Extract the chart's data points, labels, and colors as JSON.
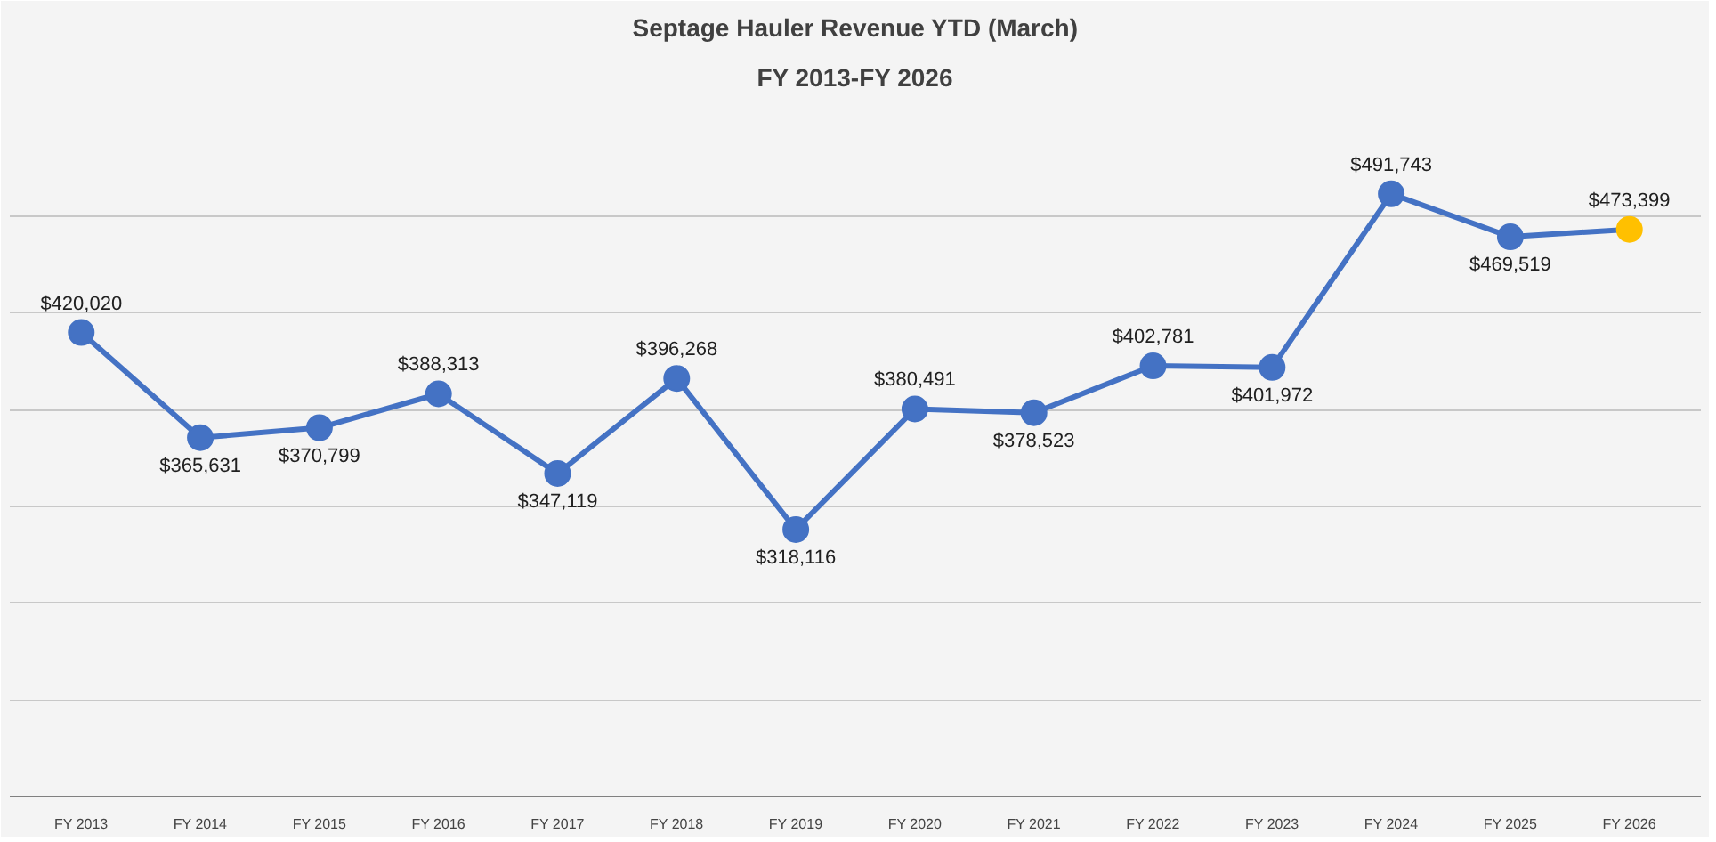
{
  "chart_data": {
    "type": "line",
    "title": "Septage Hauler Revenue YTD (March)",
    "subtitle": "FY 2013-FY 2026",
    "categories": [
      "FY 2013",
      "FY 2014",
      "FY 2015",
      "FY 2016",
      "FY 2017",
      "FY 2018",
      "FY 2019",
      "FY 2020",
      "FY 2021",
      "FY 2022",
      "FY 2023",
      "FY 2024",
      "FY 2025",
      "FY 2026"
    ],
    "series": [
      {
        "color": "#4472c4",
        "colors": [
          "#4472c4",
          "#4472c4",
          "#4472c4",
          "#4472c4",
          "#4472c4",
          "#4472c4",
          "#4472c4",
          "#4472c4",
          "#4472c4",
          "#4472c4",
          "#4472c4",
          "#4472c4",
          "#4472c4",
          "#ffc000"
        ],
        "values": [
          420020,
          365631,
          370799,
          388313,
          347119,
          396268,
          318116,
          380491,
          378523,
          402781,
          401972,
          491743,
          469519,
          473399
        ],
        "value_labels": [
          "$420,020",
          "$365,631",
          "$370,799",
          "$388,313",
          "$347,119",
          "$396,268",
          "$318,116",
          "$380,491",
          "$378,523",
          "$402,781",
          "$401,972",
          "$491,743",
          "$469,519",
          "$473,399"
        ]
      }
    ],
    "ylim": [
      180000,
      540000
    ],
    "yticks": [
      {
        "value": 230000,
        "label": null
      },
      {
        "value": 280000,
        "label": null
      },
      {
        "value": 330000,
        "label": null
      },
      {
        "value": 380000,
        "label": null
      },
      {
        "value": 430000,
        "label": null
      },
      {
        "value": 480000,
        "label": null
      }
    ],
    "tick_labels": "x",
    "grid": "y",
    "marker": "circle",
    "line_style": "solid"
  }
}
